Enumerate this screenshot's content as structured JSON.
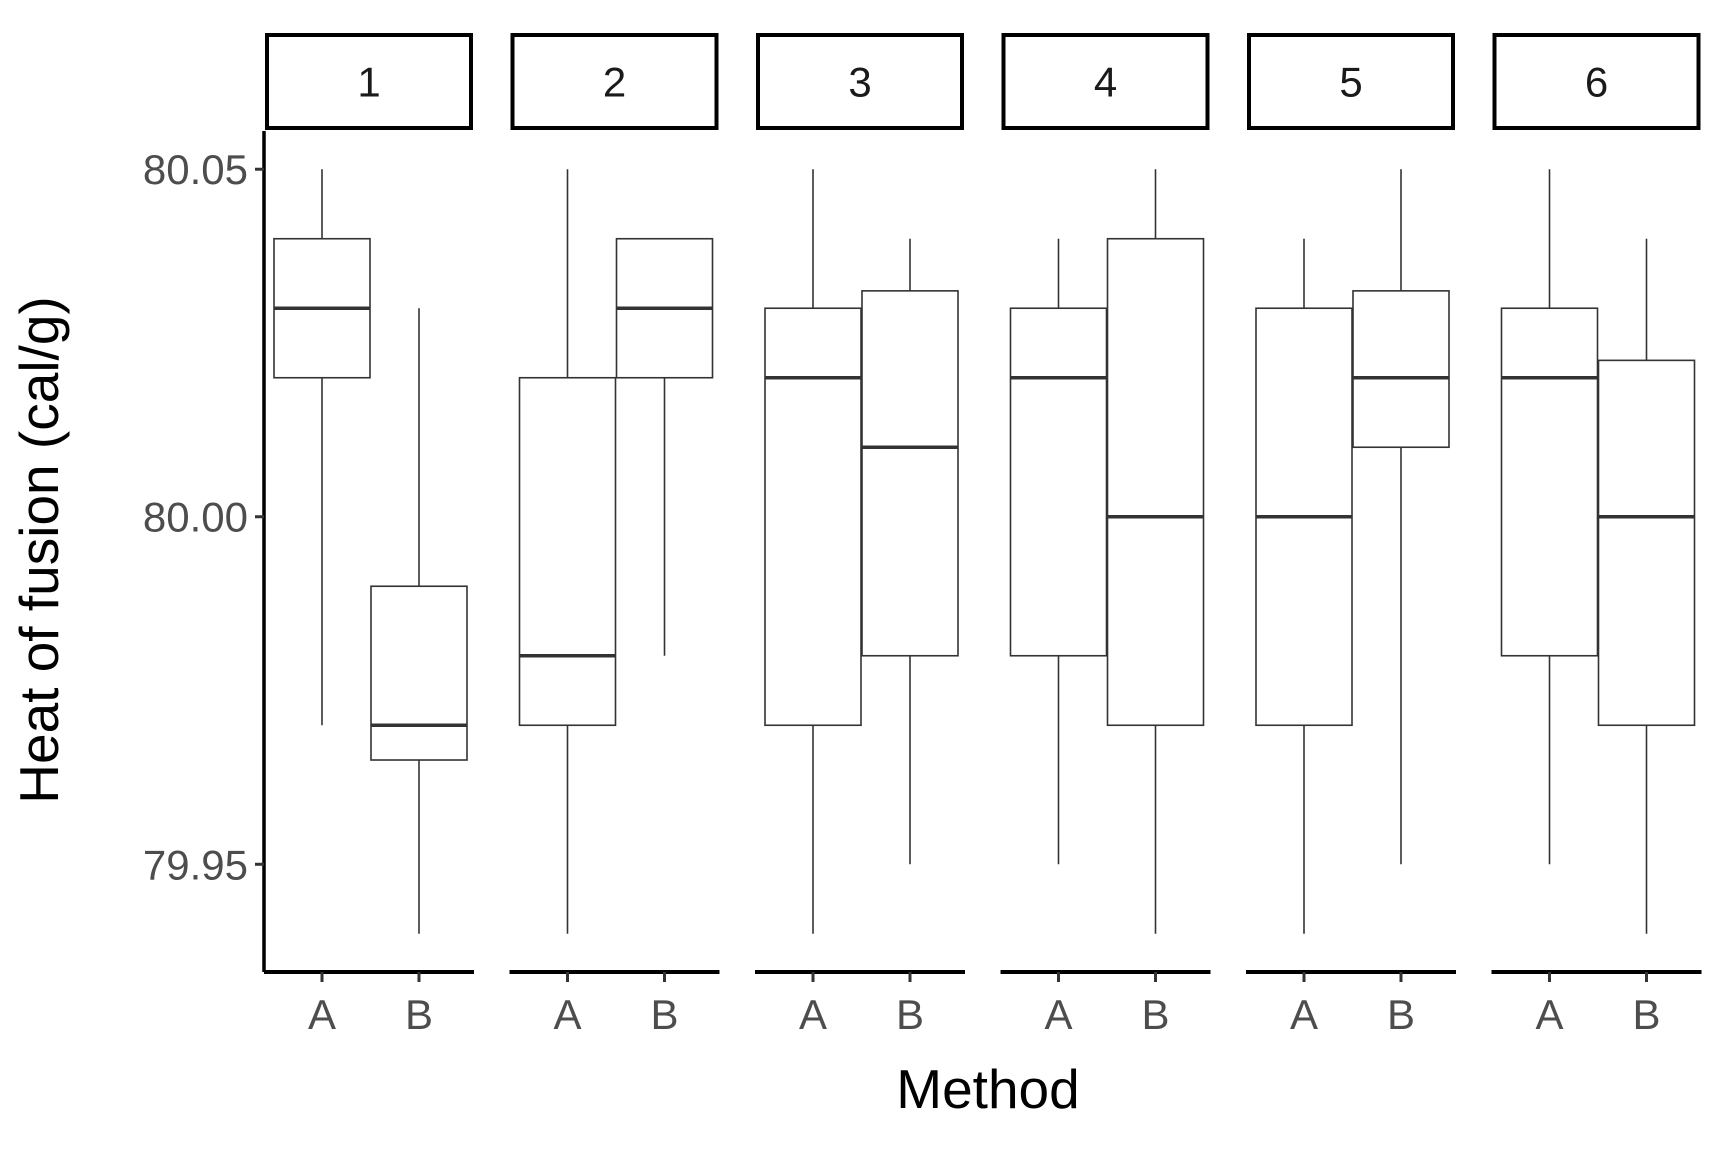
{
  "chart_data": {
    "type": "boxplot",
    "xlabel": "Method",
    "ylabel": "Heat of fusion (cal/g)",
    "ylim": [
      79.9345,
      80.0555
    ],
    "yticks": [
      "79.95",
      "80.00",
      "80.05"
    ],
    "categories": [
      "A",
      "B"
    ],
    "facets": [
      {
        "label": "1",
        "boxes": [
          {
            "method": "A",
            "min": 79.97,
            "q1": 80.02,
            "median": 80.03,
            "q3": 80.04,
            "max": 80.05
          },
          {
            "method": "B",
            "min": 79.94,
            "q1": 79.965,
            "median": 79.97,
            "q3": 79.99,
            "max": 80.03
          }
        ]
      },
      {
        "label": "2",
        "boxes": [
          {
            "method": "A",
            "min": 79.94,
            "q1": 79.97,
            "median": 79.98,
            "q3": 80.02,
            "max": 80.05
          },
          {
            "method": "B",
            "min": 79.98,
            "q1": 80.02,
            "median": 80.03,
            "q3": 80.04,
            "max": 80.04
          }
        ]
      },
      {
        "label": "3",
        "boxes": [
          {
            "method": "A",
            "min": 79.94,
            "q1": 79.97,
            "median": 80.02,
            "q3": 80.03,
            "max": 80.05
          },
          {
            "method": "B",
            "min": 79.95,
            "q1": 79.98,
            "median": 80.01,
            "q3": 80.0325,
            "max": 80.04
          }
        ]
      },
      {
        "label": "4",
        "boxes": [
          {
            "method": "A",
            "min": 79.95,
            "q1": 79.98,
            "median": 80.02,
            "q3": 80.03,
            "max": 80.04
          },
          {
            "method": "B",
            "min": 79.94,
            "q1": 79.97,
            "median": 80.0,
            "q3": 80.04,
            "max": 80.05
          }
        ]
      },
      {
        "label": "5",
        "boxes": [
          {
            "method": "A",
            "min": 79.94,
            "q1": 79.97,
            "median": 80.0,
            "q3": 80.03,
            "max": 80.04
          },
          {
            "method": "B",
            "min": 79.95,
            "q1": 80.01,
            "median": 80.02,
            "q3": 80.0325,
            "max": 80.05
          }
        ]
      },
      {
        "label": "6",
        "boxes": [
          {
            "method": "A",
            "min": 79.95,
            "q1": 79.98,
            "median": 80.02,
            "q3": 80.03,
            "max": 80.05
          },
          {
            "method": "B",
            "min": 79.94,
            "q1": 79.97,
            "median": 80.0,
            "q3": 80.0225,
            "max": 80.04
          }
        ]
      }
    ]
  }
}
